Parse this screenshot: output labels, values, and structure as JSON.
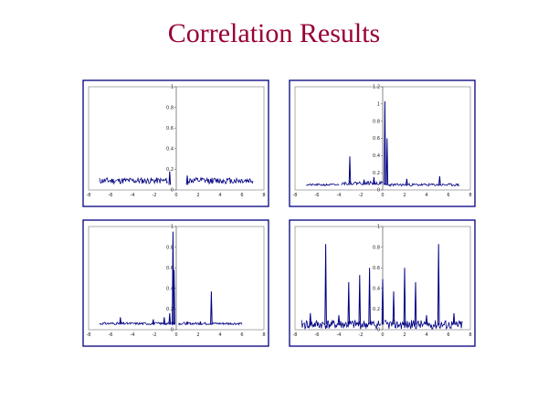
{
  "page": {
    "title": "Correlation Results"
  },
  "colors": {
    "title": "#990033",
    "frame": "#000080",
    "series": "#000080",
    "axis": "#888888"
  },
  "chart_data": [
    {
      "type": "line",
      "xlim": [
        -8,
        8
      ],
      "ylim": [
        0,
        1
      ],
      "x_ticks": [
        "-8",
        "-6",
        "-4",
        "-2",
        "0",
        "2",
        "4",
        "6",
        "8"
      ],
      "y_ticks": [
        "0",
        "0.2",
        "0.4",
        "0.6",
        "0.8",
        "1"
      ],
      "series": [
        {
          "segments": [
            {
              "x0": -7.0,
              "x1": -0.8,
              "base": 0.09,
              "noise": 0.03,
              "seed": 11
            },
            {
              "x0": 1.0,
              "x1": 7.0,
              "base": 0.09,
              "noise": 0.03,
              "seed": 12
            }
          ],
          "spikes": [
            {
              "x": -0.6,
              "y": 0.18
            },
            {
              "x": 1.0,
              "y": 0.14
            }
          ]
        }
      ]
    },
    {
      "type": "line",
      "xlim": [
        -8,
        8
      ],
      "ylim": [
        0,
        1.2
      ],
      "x_ticks": [
        "-8",
        "-6",
        "-4",
        "-2",
        "0",
        "2",
        "4",
        "6",
        "8"
      ],
      "y_ticks": [
        "0",
        "0.2",
        "0.4",
        "0.6",
        "0.8",
        "1",
        "1.2"
      ],
      "series": [
        {
          "segments": [
            {
              "x0": -7.0,
              "x1": -4.0,
              "base": 0.06,
              "noise": 0.012,
              "seed": 21
            },
            {
              "x0": -3.8,
              "x1": 0.0,
              "base": 0.08,
              "noise": 0.02,
              "seed": 22
            },
            {
              "x0": 0.1,
              "x1": 7.0,
              "base": 0.06,
              "noise": 0.015,
              "seed": 23
            }
          ],
          "spikes": [
            {
              "x": -3.0,
              "y": 0.39
            },
            {
              "x": -1.7,
              "y": 0.12
            },
            {
              "x": -0.8,
              "y": 0.15
            },
            {
              "x": 0.2,
              "y": 1.03
            },
            {
              "x": 0.4,
              "y": 0.6
            },
            {
              "x": 2.2,
              "y": 0.13
            },
            {
              "x": 5.2,
              "y": 0.16
            }
          ]
        }
      ]
    },
    {
      "type": "line",
      "xlim": [
        -8,
        8
      ],
      "ylim": [
        0,
        1
      ],
      "x_ticks": [
        "-8",
        "-6",
        "-4",
        "-2",
        "0",
        "2",
        "4",
        "6",
        "8"
      ],
      "y_ticks": [
        "0",
        "0.2",
        "0.4",
        "0.6",
        "0.8",
        "1"
      ],
      "series": [
        {
          "segments": [
            {
              "x0": -7.0,
              "x1": -0.1,
              "base": 0.06,
              "noise": 0.012,
              "seed": 31
            },
            {
              "x0": 0.2,
              "x1": 6.0,
              "base": 0.06,
              "noise": 0.012,
              "seed": 32
            }
          ],
          "spikes": [
            {
              "x": -5.1,
              "y": 0.12
            },
            {
              "x": -2.1,
              "y": 0.1
            },
            {
              "x": -1.1,
              "y": 0.12
            },
            {
              "x": -0.6,
              "y": 0.16
            },
            {
              "x": -0.3,
              "y": 0.95
            },
            {
              "x": -0.2,
              "y": 0.58
            },
            {
              "x": 1.0,
              "y": 0.08
            },
            {
              "x": 2.2,
              "y": 0.08
            },
            {
              "x": 3.2,
              "y": 0.37
            }
          ]
        }
      ]
    },
    {
      "type": "line",
      "xlim": [
        -8,
        8
      ],
      "ylim": [
        0,
        1
      ],
      "x_ticks": [
        "-8",
        "-6",
        "-4",
        "-2",
        "0",
        "2",
        "4",
        "6",
        "8"
      ],
      "y_ticks": [
        "0",
        "0.2",
        "0.4",
        "0.6",
        "0.8",
        "1"
      ],
      "series": [
        {
          "segments": [
            {
              "x0": -7.4,
              "x1": -0.2,
              "base": 0.05,
              "noise": 0.045,
              "seed": 41
            },
            {
              "x0": 0.2,
              "x1": 7.3,
              "base": 0.05,
              "noise": 0.045,
              "seed": 42
            }
          ],
          "spikes": [
            {
              "x": -6.6,
              "y": 0.16
            },
            {
              "x": -5.2,
              "y": 0.83
            },
            {
              "x": -4.0,
              "y": 0.14
            },
            {
              "x": -3.1,
              "y": 0.46
            },
            {
              "x": -2.1,
              "y": 0.53
            },
            {
              "x": -1.2,
              "y": 0.6
            },
            {
              "x": 0.0,
              "y": 0.49
            },
            {
              "x": 1.0,
              "y": 0.37
            },
            {
              "x": 2.0,
              "y": 0.6
            },
            {
              "x": 3.0,
              "y": 0.46
            },
            {
              "x": 4.0,
              "y": 0.14
            },
            {
              "x": 5.1,
              "y": 0.83
            },
            {
              "x": 6.5,
              "y": 0.16
            }
          ]
        }
      ]
    }
  ]
}
